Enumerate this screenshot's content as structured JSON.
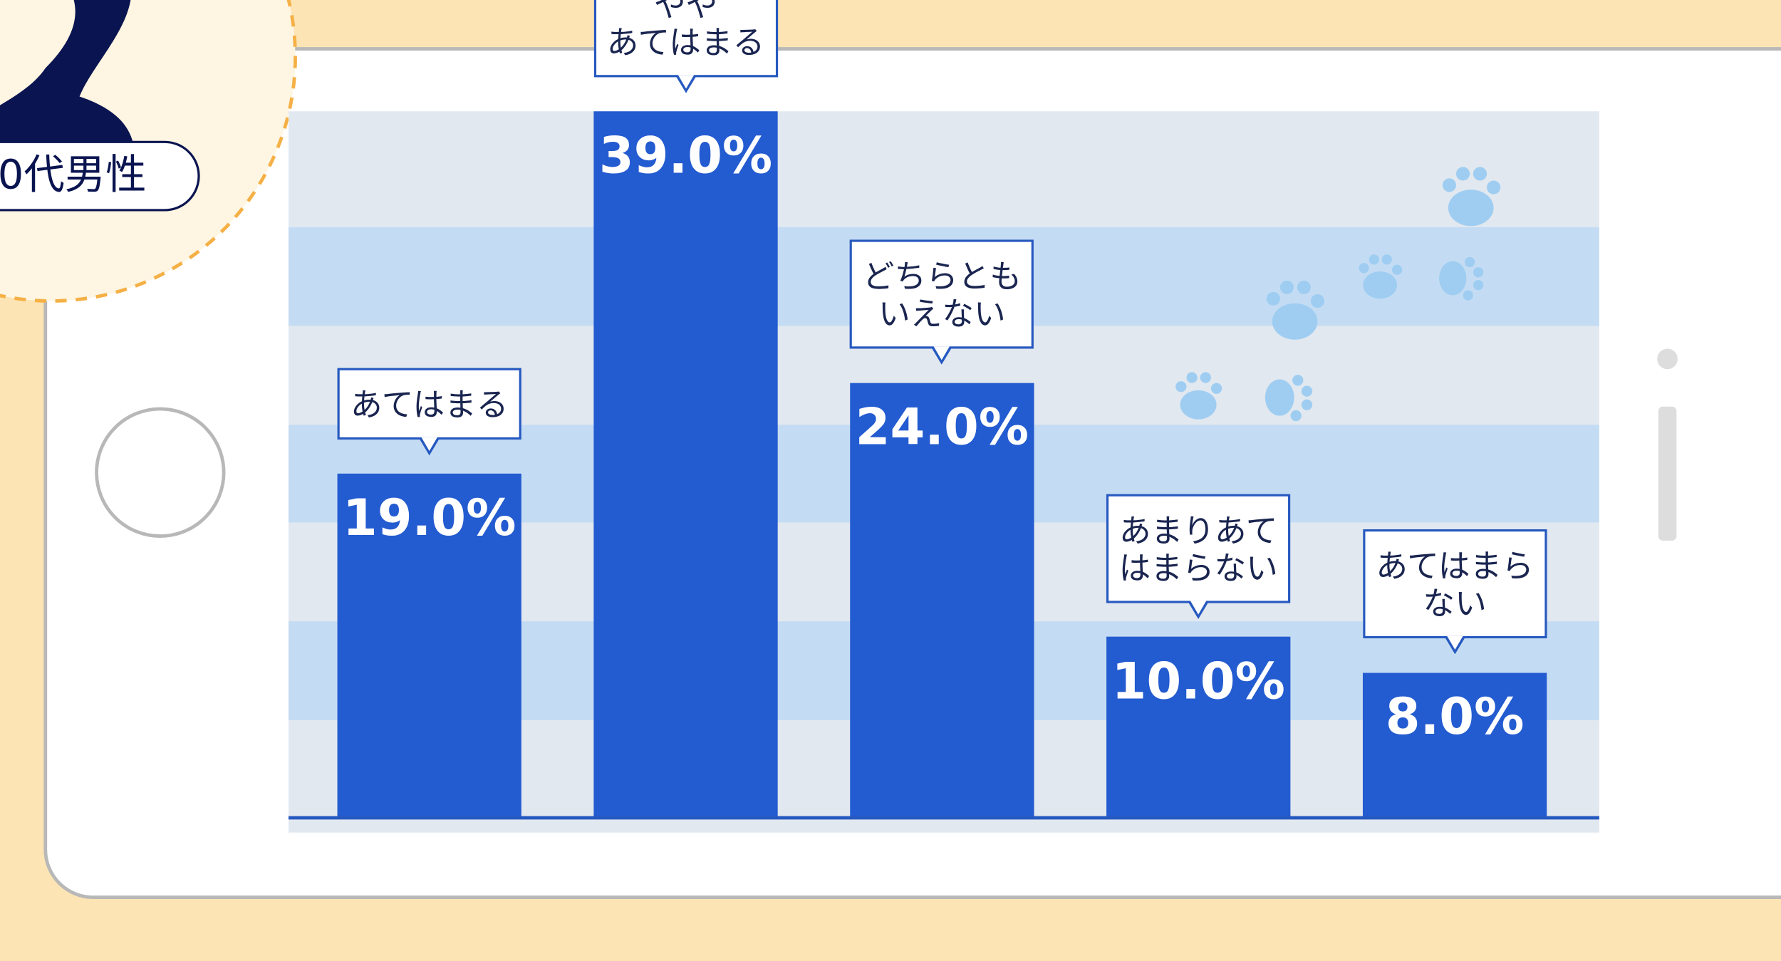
{
  "badge": "0代男性",
  "chart_data": {
    "type": "bar",
    "categories": [
      "あてはまる",
      "やや\nあてはまる",
      "どちらとも\nいえない",
      "あまりあて\nはまらない",
      "あてはまら\nない"
    ],
    "values": [
      19.0,
      39.0,
      24.0,
      10.0,
      8.0
    ],
    "value_labels": [
      "19.0%",
      "39.0%",
      "24.0%",
      "10.0%",
      "8.0%"
    ],
    "color": "#235bd0"
  }
}
